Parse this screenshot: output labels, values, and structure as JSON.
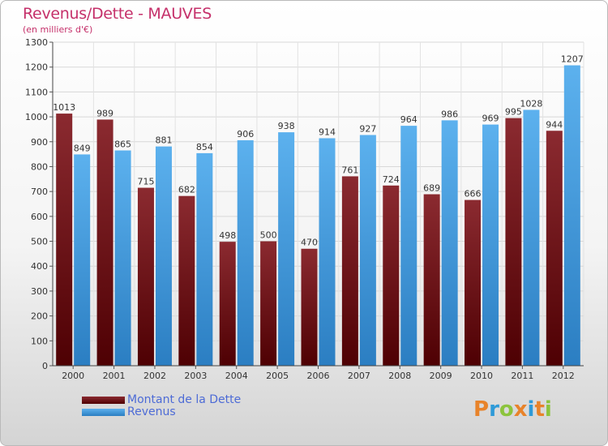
{
  "title": "Revenus/Dette - MAUVES",
  "subtitle": "(en milliers d'€)",
  "logo": {
    "text": "Proxiti",
    "colors": [
      "#e8832a",
      "#2e9ad8",
      "#8cc43d",
      "#e8832a",
      "#2e9ad8",
      "#e8832a",
      "#8cc43d"
    ]
  },
  "chart_data": {
    "type": "bar",
    "title": "Revenus/Dette - MAUVES",
    "subtitle": "(en milliers d'€)",
    "categories": [
      "2000",
      "2001",
      "2002",
      "2003",
      "2004",
      "2005",
      "2006",
      "2007",
      "2008",
      "2009",
      "2010",
      "2011",
      "2012"
    ],
    "series": [
      {
        "name": "Montant de la Dette",
        "color": "#7a1a1e",
        "values": [
          1013,
          989,
          715,
          682,
          498,
          500,
          470,
          761,
          724,
          689,
          666,
          995,
          944
        ]
      },
      {
        "name": "Revenus",
        "color": "#4aa3e8",
        "values": [
          849,
          865,
          881,
          854,
          906,
          938,
          914,
          927,
          964,
          986,
          969,
          1028,
          1207
        ]
      }
    ],
    "ylim": [
      0,
      1300
    ],
    "yticks": [
      0,
      100,
      200,
      300,
      400,
      500,
      600,
      700,
      800,
      900,
      1000,
      1100,
      1200,
      1300
    ],
    "grid": true,
    "legend_position": "bottom-left"
  }
}
